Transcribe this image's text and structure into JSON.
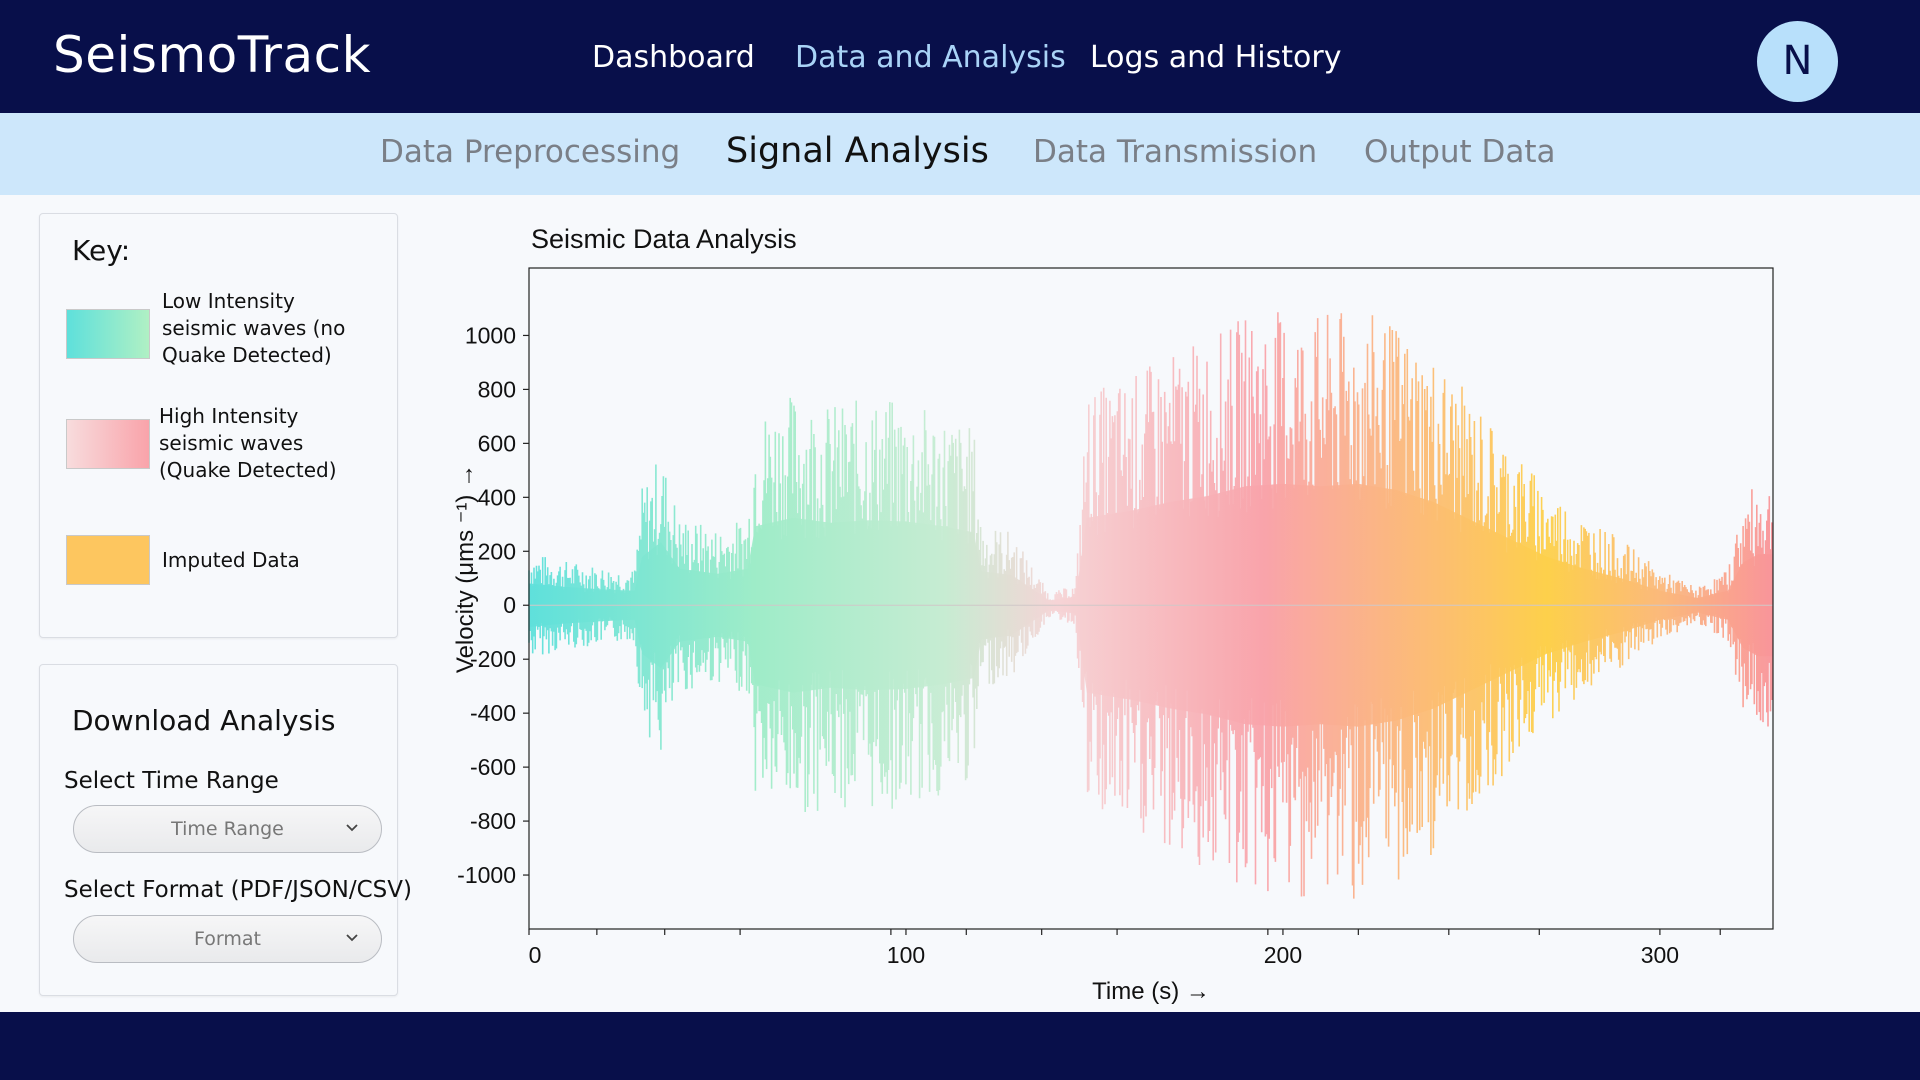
{
  "header": {
    "brand": "SeismoTrack",
    "nav": [
      {
        "label": "Dashboard",
        "active": false
      },
      {
        "label": "Data and Analysis",
        "active": true
      },
      {
        "label": "Logs and History",
        "active": false
      }
    ],
    "avatar_initial": "N"
  },
  "subnav": [
    {
      "label": "Data Preprocessing",
      "active": false
    },
    {
      "label": "Signal Analysis",
      "active": true
    },
    {
      "label": "Data Transmission",
      "active": false
    },
    {
      "label": "Output Data",
      "active": false
    }
  ],
  "key": {
    "title": "Key:",
    "items": [
      {
        "label": "Low Intensity seismic waves (no Quake Detected)",
        "icon": "gradient-swatch",
        "color_from": "#5ee0db",
        "color_to": "#b0f0c4"
      },
      {
        "label": "High Intensity seismic waves (Quake Detected)",
        "icon": "gradient-swatch",
        "color_from": "#f8d6d8",
        "color_to": "#f9a3aa"
      },
      {
        "label": "Imputed Data",
        "icon": "solid-swatch",
        "color_from": "#fdc65f",
        "color_to": "#fdc65f"
      }
    ]
  },
  "download": {
    "title": "Download Analysis",
    "time_range_label": "Select Time Range",
    "time_range_placeholder": "Time Range",
    "format_label": "Select Format (PDF/JSON/CSV)",
    "format_placeholder": "Format"
  },
  "colors": {
    "nav_bg": "#080f4a",
    "nav_active": "#a9d3f7",
    "subnav_bg": "#cde7fb",
    "avatar_bg": "#b8e0fb"
  },
  "chart_data": {
    "type": "area",
    "title": "Seismic Data Analysis",
    "xlabel": "Time (s) →",
    "ylabel": "Velocity (μms ⁻¹) →",
    "xlim": [
      0,
      330
    ],
    "ylim": [
      -1200,
      1250
    ],
    "xticks": [
      0,
      100,
      200,
      300
    ],
    "yticks": [
      1000,
      800,
      600,
      400,
      200,
      0,
      -200,
      -400,
      -600,
      -800,
      -1000
    ],
    "grid": false,
    "envelope": [
      {
        "x": 0,
        "amp": 180
      },
      {
        "x": 10,
        "amp": 150
      },
      {
        "x": 20,
        "amp": 130
      },
      {
        "x": 28,
        "amp": 120
      },
      {
        "x": 30,
        "amp": 400
      },
      {
        "x": 35,
        "amp": 520
      },
      {
        "x": 40,
        "amp": 300
      },
      {
        "x": 50,
        "amp": 260
      },
      {
        "x": 58,
        "amp": 300
      },
      {
        "x": 60,
        "amp": 650
      },
      {
        "x": 70,
        "amp": 720
      },
      {
        "x": 80,
        "amp": 680
      },
      {
        "x": 90,
        "amp": 700
      },
      {
        "x": 100,
        "amp": 690
      },
      {
        "x": 110,
        "amp": 650
      },
      {
        "x": 118,
        "amp": 600
      },
      {
        "x": 120,
        "amp": 280
      },
      {
        "x": 128,
        "amp": 250
      },
      {
        "x": 138,
        "amp": 40
      },
      {
        "x": 145,
        "amp": 70
      },
      {
        "x": 148,
        "amp": 720
      },
      {
        "x": 160,
        "amp": 780
      },
      {
        "x": 170,
        "amp": 850
      },
      {
        "x": 180,
        "amp": 900
      },
      {
        "x": 190,
        "amp": 980
      },
      {
        "x": 200,
        "amp": 1000
      },
      {
        "x": 210,
        "amp": 980
      },
      {
        "x": 220,
        "amp": 1000
      },
      {
        "x": 230,
        "amp": 950
      },
      {
        "x": 240,
        "amp": 850
      },
      {
        "x": 250,
        "amp": 700
      },
      {
        "x": 260,
        "amp": 550
      },
      {
        "x": 270,
        "amp": 400
      },
      {
        "x": 280,
        "amp": 300
      },
      {
        "x": 290,
        "amp": 220
      },
      {
        "x": 300,
        "amp": 120
      },
      {
        "x": 310,
        "amp": 60
      },
      {
        "x": 318,
        "amp": 120
      },
      {
        "x": 322,
        "amp": 350
      },
      {
        "x": 326,
        "amp": 420
      },
      {
        "x": 330,
        "amp": 420
      }
    ],
    "color_stops": [
      {
        "x": 0,
        "color": "#5ee0db"
      },
      {
        "x": 60,
        "color": "#9eecc8"
      },
      {
        "x": 110,
        "color": "#c6ecd2"
      },
      {
        "x": 140,
        "color": "#f6d4d6"
      },
      {
        "x": 195,
        "color": "#f9a3aa"
      },
      {
        "x": 255,
        "color": "#fdc65f"
      },
      {
        "x": 270,
        "color": "#fdd04a"
      },
      {
        "x": 300,
        "color": "#fbb97a"
      },
      {
        "x": 330,
        "color": "#f9949a"
      }
    ]
  }
}
